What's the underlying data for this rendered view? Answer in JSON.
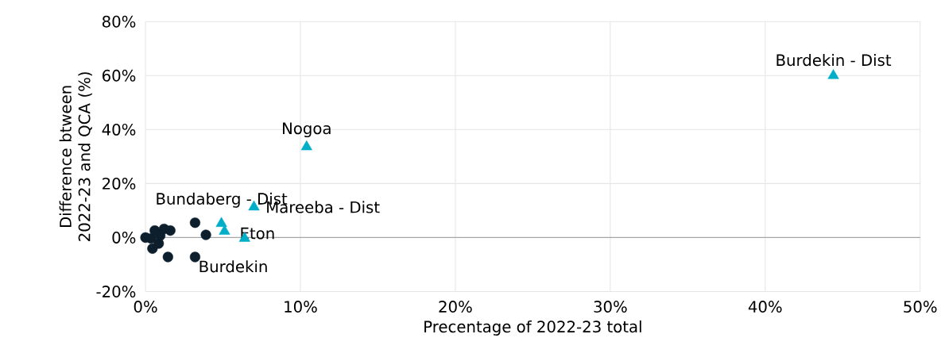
{
  "chart_data": {
    "type": "scatter",
    "xlabel": "Precentage of 2022-23 total",
    "ylabel": "Difference btween 2022-23 and QCA (%)",
    "series": [
      {
        "color": "#0d1f2d",
        "marker": "circle",
        "x": [
          3.2,
          3.9,
          1.45,
          3.2,
          0.0,
          0.6,
          1.2,
          1.6,
          0.45,
          0.85,
          0.35,
          0.95
        ],
        "values": [
          5.5,
          1.0,
          -7.2,
          -7.2,
          0.0,
          2.6,
          3.2,
          2.6,
          -4.1,
          -2.2,
          -0.3,
          0.7
        ]
      },
      {
        "color": "#00aec7",
        "marker": "triangle",
        "x": [
          44.4,
          10.4,
          7.0,
          4.9,
          5.1,
          6.4
        ],
        "values": [
          60,
          33.6,
          11.3,
          5.2,
          2.3,
          -0.3
        ]
      }
    ],
    "annotations": [
      {
        "text": "Burdekin - Dist",
        "x": 44.4,
        "y": 60
      },
      {
        "text": "Nogoa",
        "x": 10.4,
        "y": 33.6
      },
      {
        "text": "Mareeba - Dist",
        "x": 7.0,
        "y": 11.3
      },
      {
        "text": "Bundaberg - Dist",
        "x": 4.9,
        "y": 5.2
      },
      {
        "text": "Eton",
        "x": 6.4,
        "y": -0.3
      },
      {
        "text": "Burdekin",
        "x": 3.2,
        "y": -7.2
      }
    ],
    "xlim": [
      0,
      50
    ],
    "ylim": [
      -20,
      80
    ],
    "xticks": [
      {
        "value": 0,
        "label": "0%"
      },
      {
        "value": 10,
        "label": "10%"
      },
      {
        "value": 20,
        "label": "20%"
      },
      {
        "value": 30,
        "label": "30%"
      },
      {
        "value": 40,
        "label": "40%"
      },
      {
        "value": 50,
        "label": "50%"
      }
    ],
    "yticks": [
      {
        "value": -20,
        "label": "-20%"
      },
      {
        "value": 0,
        "label": "0%"
      },
      {
        "value": 20,
        "label": "20%"
      },
      {
        "value": 40,
        "label": "40%"
      },
      {
        "value": 60,
        "label": "60%"
      },
      {
        "value": 80,
        "label": "80%"
      }
    ],
    "ref_lines": [
      {
        "axis": "y",
        "value": 0,
        "color": "#a6a6a6"
      }
    ],
    "grid": true
  }
}
